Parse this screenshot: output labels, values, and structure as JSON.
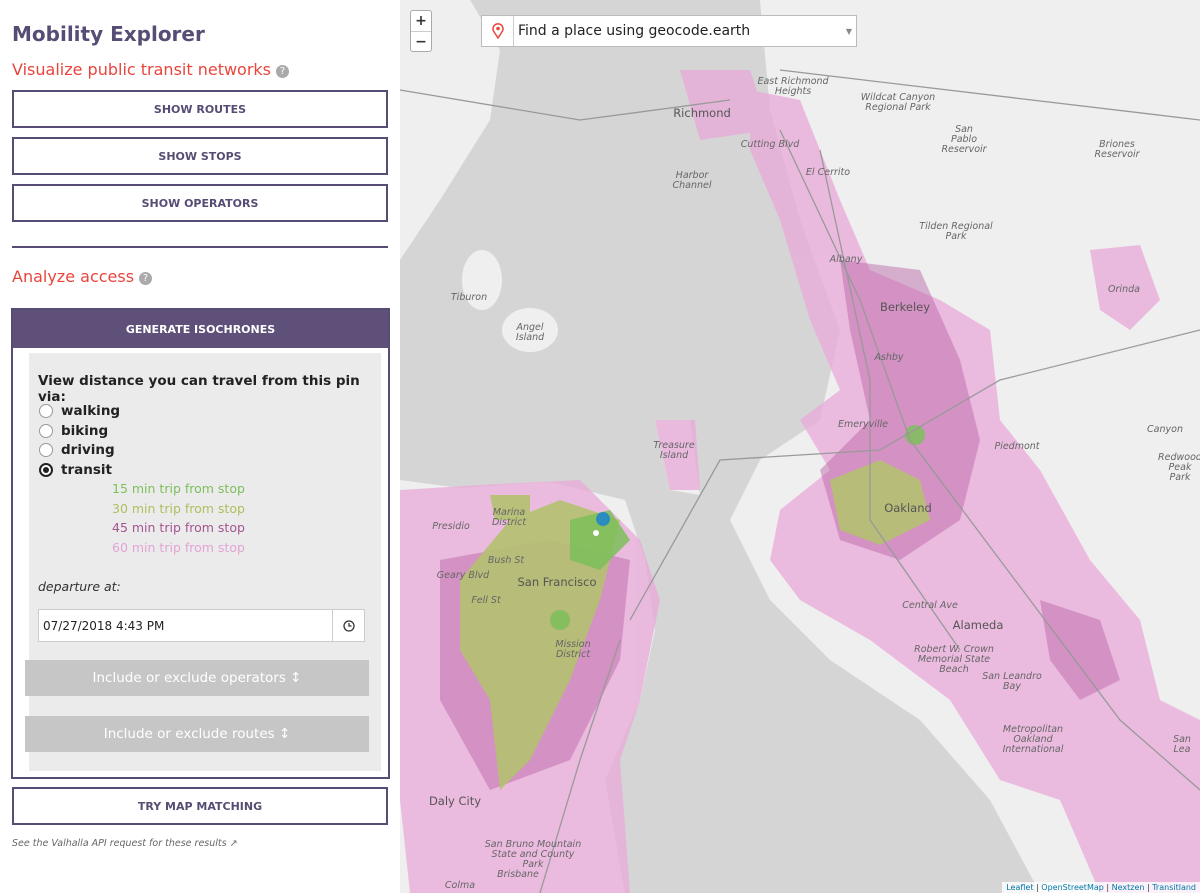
{
  "sidebar": {
    "title": "Mobility Explorer",
    "visualize": {
      "heading": "Visualize public transit networks",
      "buttons": [
        "SHOW ROUTES",
        "SHOW STOPS",
        "SHOW OPERATORS"
      ]
    },
    "analyze": {
      "heading": "Analyze access"
    },
    "isochrones": {
      "header": "GENERATE ISOCHRONES",
      "prompt": "View distance you can travel from this pin via:",
      "modes": [
        {
          "label": "walking",
          "selected": false
        },
        {
          "label": "biking",
          "selected": false
        },
        {
          "label": "driving",
          "selected": false
        },
        {
          "label": "transit",
          "selected": true
        }
      ],
      "legend": [
        {
          "label": "15 min trip from stop",
          "color": "#7dbf5a"
        },
        {
          "label": "30 min trip from stop",
          "color": "#aebf5e"
        },
        {
          "label": "45 min trip from stop",
          "color": "#a3558f"
        },
        {
          "label": "60 min trip from stop",
          "color": "#e3a4d5"
        }
      ],
      "departure_label": "departure at:",
      "departure_value": "07/27/2018 4:43 PM",
      "filters": [
        "Include or exclude operators ↕",
        "Include or exclude routes ↕"
      ]
    },
    "map_matching": "TRY MAP MATCHING",
    "footnote": "See the Valhalla API request for these results"
  },
  "map": {
    "zoom": [
      "+",
      "−"
    ],
    "search_placeholder": "Find a place using geocode.earth",
    "labels": [
      "Richmond",
      "East Richmond\nHeights",
      "Wildcat Canyon\nRegional Park",
      "San\nPablo\nReservoir",
      "Briones\nReservoir",
      "Cutting Blvd",
      "El Cerrito",
      "Harbor\nChannel",
      "Tilden Regional\nPark",
      "Albany",
      "Orinda",
      "Tiburon",
      "Berkeley",
      "Angel\nIsland",
      "Ashby",
      "Emeryville",
      "Piedmont",
      "Canyon",
      "Redwood Peak\nPark",
      "Treasure\nIsland",
      "Oakland",
      "Presidio",
      "Marina\nDistrict",
      "San Francisco",
      "Geary Blvd",
      "Bush St",
      "Fell St",
      "Mission\nDistrict",
      "Alameda",
      "Central Ave",
      "Robert W. Crown\nMemorial State\nBeach",
      "San Leandro\nBay",
      "Metropolitan\nOakland\nInternational",
      "Daly City",
      "San Bruno Mountain\nState and County\nPark",
      "Brisbane",
      "Colma",
      "San Lea"
    ],
    "attribution": [
      "Leaflet",
      "OpenStreetMap",
      "Nextzen",
      "Transitland"
    ]
  }
}
